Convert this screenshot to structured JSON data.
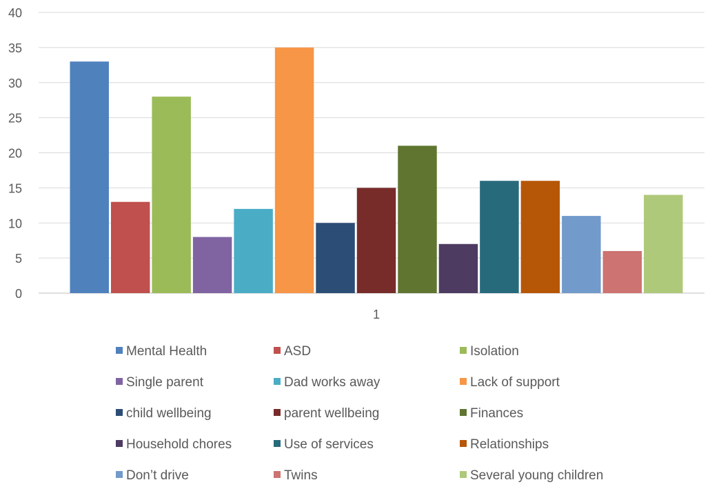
{
  "chart_data": {
    "type": "bar",
    "title": "",
    "xlabel": "",
    "ylabel": "",
    "categories": [
      "1"
    ],
    "ylim": [
      0,
      40
    ],
    "yticks": [
      0,
      5,
      10,
      15,
      20,
      25,
      30,
      35,
      40
    ],
    "grid": true,
    "legend_position": "bottom",
    "series": [
      {
        "name": "Mental Health",
        "values": [
          33
        ],
        "color": "#4F81BD"
      },
      {
        "name": "ASD",
        "values": [
          13
        ],
        "color": "#C0504D"
      },
      {
        "name": "Isolation",
        "values": [
          28
        ],
        "color": "#9BBB59"
      },
      {
        "name": "Single parent",
        "values": [
          8
        ],
        "color": "#8064A2"
      },
      {
        "name": "Dad works away",
        "values": [
          12
        ],
        "color": "#4BACC6"
      },
      {
        "name": "Lack of support",
        "values": [
          35
        ],
        "color": "#F79646"
      },
      {
        "name": "child wellbeing",
        "values": [
          10
        ],
        "color": "#2C4D75"
      },
      {
        "name": "parent wellbeing",
        "values": [
          15
        ],
        "color": "#772C2A"
      },
      {
        "name": "Finances",
        "values": [
          21
        ],
        "color": "#5F7530"
      },
      {
        "name": "Household chores",
        "values": [
          7
        ],
        "color": "#4D3B62"
      },
      {
        "name": "Use of services",
        "values": [
          16
        ],
        "color": "#276A7C"
      },
      {
        "name": "Relationships",
        "values": [
          16
        ],
        "color": "#B65708"
      },
      {
        "name": "Don’t drive",
        "values": [
          11
        ],
        "color": "#729ACA"
      },
      {
        "name": "Twins",
        "values": [
          6
        ],
        "color": "#CD7371"
      },
      {
        "name": "Several young children",
        "values": [
          14
        ],
        "color": "#AFC97A"
      }
    ]
  }
}
